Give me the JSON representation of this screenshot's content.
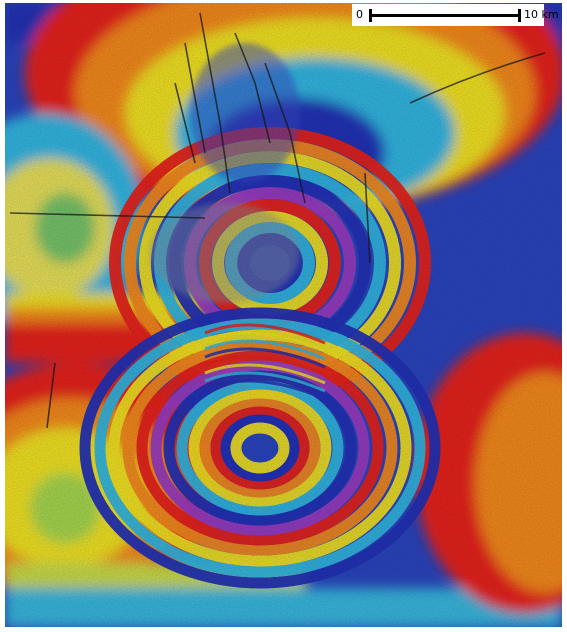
{
  "scale_bar": {
    "start": "0",
    "end": "10",
    "unit": "km"
  },
  "palette": {
    "red": "#e8221c",
    "orange": "#f58a1f",
    "yellow": "#f2e322",
    "green": "#5ec84a",
    "cyan": "#31b7e3",
    "blue": "#2231b8",
    "magenta": "#9a3cc3"
  }
}
